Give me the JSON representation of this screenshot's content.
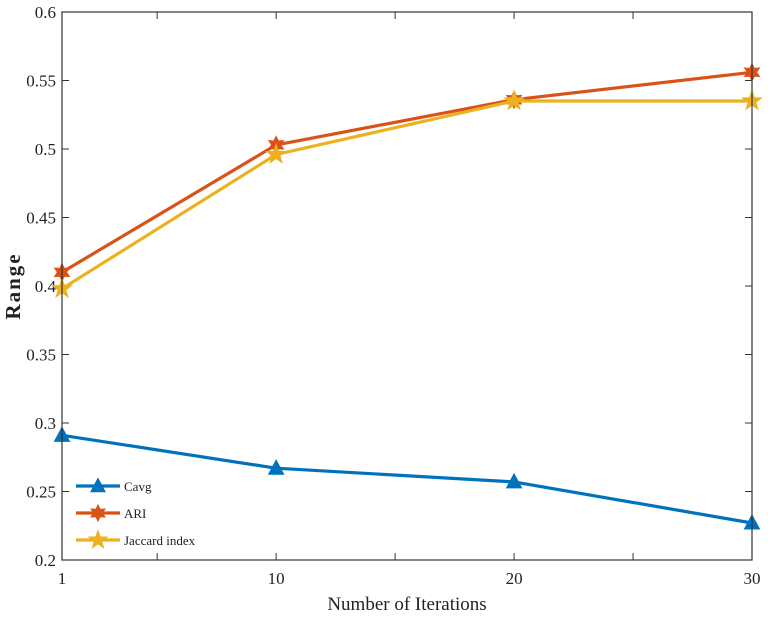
{
  "chart_data": {
    "type": "line",
    "title": "",
    "xlabel": "Number of Iterations",
    "ylabel": "Range",
    "x": [
      1,
      10,
      20,
      30
    ],
    "xlim": [
      1,
      30
    ],
    "ylim": [
      0.2,
      0.6
    ],
    "xticks": [
      1,
      5,
      10,
      15,
      20,
      25,
      30
    ],
    "xtick_labels": [
      "1",
      "",
      "10",
      "",
      "20",
      "",
      "30"
    ],
    "yticks": [
      0.2,
      0.25,
      0.3,
      0.35,
      0.4,
      0.45,
      0.5,
      0.55,
      0.6
    ],
    "ytick_labels": [
      "0.2",
      "0.25",
      "0.3",
      "0.35",
      "0.4",
      "0.45",
      "0.5",
      "0.55",
      "0.6"
    ],
    "grid": false,
    "legend_position": "bottom-left",
    "series": [
      {
        "name": "Cavg",
        "values": [
          0.291,
          0.267,
          0.257,
          0.227
        ],
        "color": "#0072BD",
        "marker": "triangle"
      },
      {
        "name": "ARI",
        "values": [
          0.41,
          0.503,
          0.536,
          0.556
        ],
        "color": "#D95319",
        "marker": "hexagram"
      },
      {
        "name": "Jaccard index",
        "values": [
          0.398,
          0.496,
          0.535,
          0.535
        ],
        "color": "#EDB120",
        "marker": "pentagram"
      }
    ]
  }
}
